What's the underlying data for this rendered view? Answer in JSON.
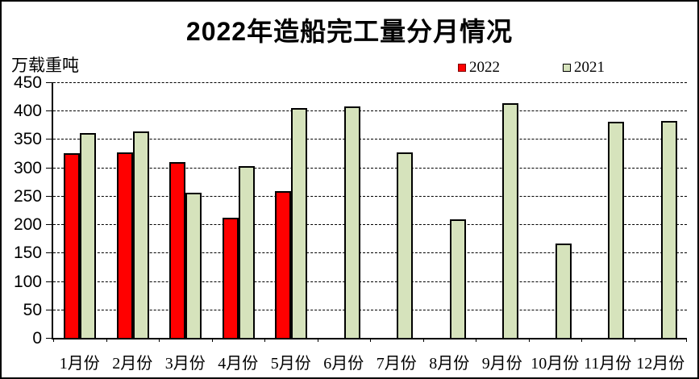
{
  "window": {
    "background": "#FFFFFF",
    "border_color": "#000000"
  },
  "header": {
    "title": "2022年造船完工量分月情况"
  },
  "axis_unit_label": "万载重吨",
  "legend": {
    "position": "top-right",
    "items": [
      {
        "label": "2022",
        "swatch_fill": "#FF0000",
        "swatch_border": "#7F0000"
      },
      {
        "label": "2021",
        "swatch_fill": "#D6E3BC",
        "swatch_border": "#000000"
      }
    ]
  },
  "chart_data": {
    "type": "bar",
    "title": "2022年造船完工量分月情况",
    "ylabel": "万载重吨",
    "xlabel": "",
    "categories": [
      "1月份",
      "2月份",
      "3月份",
      "4月份",
      "5月份",
      "6月份",
      "7月份",
      "8月份",
      "9月份",
      "10月份",
      "11月份",
      "12月份"
    ],
    "series": [
      {
        "name": "2022",
        "fill": "#FF0000",
        "border": "#000000",
        "values": [
          325,
          327,
          310,
          211,
          258,
          null,
          null,
          null,
          null,
          null,
          null,
          null
        ]
      },
      {
        "name": "2021",
        "fill": "#D6E3BC",
        "border": "#000000",
        "values": [
          361,
          363,
          256,
          302,
          405,
          407,
          326,
          208,
          413,
          166,
          381,
          382
        ]
      }
    ],
    "ylim": [
      0,
      450
    ],
    "ytick_interval": 50,
    "ytick_labels": [
      "0",
      "50",
      "100",
      "150",
      "200",
      "250",
      "300",
      "350",
      "400",
      "450"
    ],
    "grid": "horizontal-dashed",
    "legend_position": "top-right"
  }
}
